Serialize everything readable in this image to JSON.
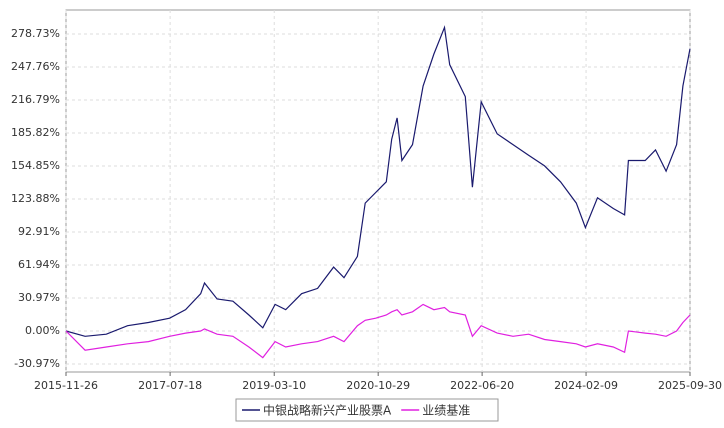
{
  "chart_data": {
    "type": "line",
    "x": [
      "2015-11-26",
      "2016-03-15",
      "2016-07-15",
      "2016-11-15",
      "2017-03-15",
      "2017-07-15",
      "2017-10-15",
      "2018-01-10",
      "2018-02-01",
      "2018-04-15",
      "2018-07-15",
      "2018-10-15",
      "2019-01-03",
      "2019-03-15",
      "2019-05-15",
      "2019-08-15",
      "2019-11-15",
      "2020-02-15",
      "2020-04-15",
      "2020-07-01",
      "2020-08-15",
      "2020-10-15",
      "2020-12-15",
      "2021-01-15",
      "2021-02-15",
      "2021-03-15",
      "2021-05-15",
      "2021-07-15",
      "2021-09-15",
      "2021-11-15",
      "2021-12-15",
      "2022-03-15",
      "2022-04-25",
      "2022-06-15",
      "2022-09-15",
      "2022-12-15",
      "2023-03-15",
      "2023-06-15",
      "2023-09-15",
      "2023-12-15",
      "2024-02-05",
      "2024-04-15",
      "2024-07-15",
      "2024-09-18",
      "2024-10-10",
      "2025-01-15",
      "2025-03-15",
      "2025-05-15",
      "2025-07-15",
      "2025-08-20",
      "2025-09-30"
    ],
    "series": [
      {
        "name": "中银战略新兴产业股票A",
        "color": "#1a1a6e",
        "values": [
          0,
          -5,
          -3,
          5,
          8,
          12,
          20,
          35,
          45,
          30,
          28,
          15,
          3,
          25,
          20,
          35,
          40,
          60,
          50,
          70,
          120,
          130,
          140,
          180,
          200,
          160,
          175,
          230,
          260,
          285,
          250,
          220,
          135,
          215,
          185,
          175,
          165,
          155,
          140,
          120,
          97,
          125,
          115,
          109,
          160,
          160,
          170,
          150,
          175,
          230,
          265
        ]
      },
      {
        "name": "业绩基准",
        "color": "#e020e0",
        "values": [
          0,
          -18,
          -15,
          -12,
          -10,
          -5,
          -2,
          0,
          2,
          -3,
          -5,
          -15,
          -25,
          -10,
          -15,
          -12,
          -10,
          -5,
          -10,
          5,
          10,
          12,
          15,
          18,
          20,
          15,
          18,
          25,
          20,
          22,
          18,
          15,
          -5,
          5,
          -2,
          -5,
          -3,
          -8,
          -10,
          -12,
          -15,
          -12,
          -15,
          -20,
          0,
          -2,
          -3,
          -5,
          0,
          8,
          15
        ]
      }
    ],
    "ylim": [
      -38.5,
      301.3
    ],
    "yticks": [
      {
        "value": -30.97,
        "label": "-30.97%"
      },
      {
        "value": 0,
        "label": "0.00%"
      },
      {
        "value": 30.97,
        "label": "30.97%"
      },
      {
        "value": 61.94,
        "label": "61.94%"
      },
      {
        "value": 92.91,
        "label": "92.91%"
      },
      {
        "value": 123.88,
        "label": "123.88%"
      },
      {
        "value": 154.85,
        "label": "154.85%"
      },
      {
        "value": 185.82,
        "label": "185.82%"
      },
      {
        "value": 216.79,
        "label": "216.79%"
      },
      {
        "value": 247.76,
        "label": "247.76%"
      },
      {
        "value": 278.73,
        "label": "278.73%"
      }
    ],
    "xlim": [
      "2015-11-26",
      "2025-09-30"
    ],
    "xticks": [
      "2015-11-26",
      "2017-07-18",
      "2019-03-10",
      "2020-10-29",
      "2022-06-20",
      "2024-02-09",
      "2025-09-30"
    ],
    "grid": true
  }
}
